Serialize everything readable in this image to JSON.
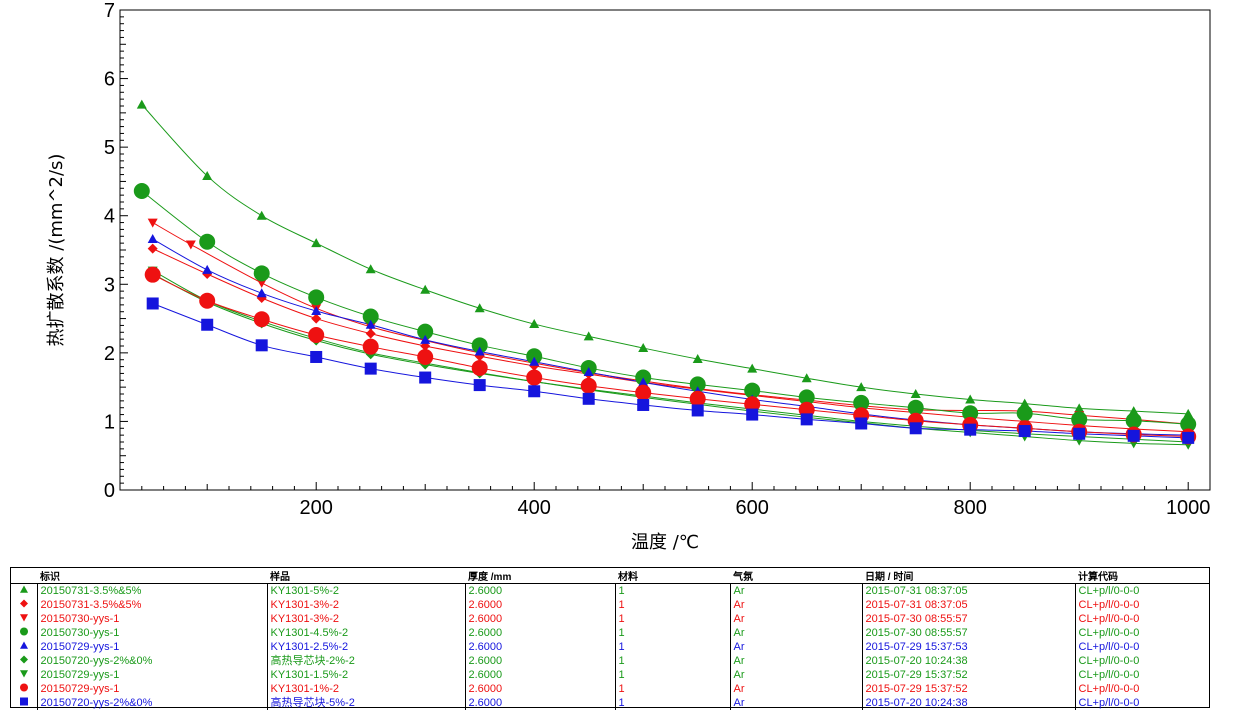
{
  "chart_data": {
    "type": "scatter",
    "xlabel": "温度 /℃",
    "ylabel": "热扩散系数 /(mm^2/s)",
    "xlim": [
      20,
      1020
    ],
    "ylim": [
      0,
      7
    ],
    "xticks": [
      200,
      400,
      600,
      800,
      1000
    ],
    "yticks": [
      0,
      1,
      2,
      3,
      4,
      5,
      6,
      7
    ],
    "grid": false,
    "legend_placement": "bottom table",
    "series": [
      {
        "name": "20150731-3.5%&5%",
        "color": "#1a9a1a",
        "marker": "triangle-up",
        "size": "small",
        "x": [
          40,
          100,
          150,
          200,
          250,
          300,
          350,
          400,
          450,
          500,
          550,
          600,
          650,
          700,
          750,
          800,
          850,
          900,
          950,
          1000
        ],
        "y": [
          5.62,
          4.58,
          4.0,
          3.6,
          3.22,
          2.92,
          2.65,
          2.42,
          2.24,
          2.07,
          1.91,
          1.77,
          1.63,
          1.5,
          1.4,
          1.32,
          1.26,
          1.19,
          1.15,
          1.11
        ]
      },
      {
        "name": "20150731-3.5%&5%",
        "color": "#ee1111",
        "marker": "diamond",
        "size": "small",
        "x": [
          50,
          100,
          150,
          200,
          250,
          300,
          350,
          400,
          450,
          500,
          550,
          600,
          650,
          700,
          750,
          800,
          850,
          900,
          950,
          1000
        ],
        "y": [
          3.52,
          3.15,
          2.8,
          2.5,
          2.28,
          2.1,
          1.95,
          1.81,
          1.69,
          1.57,
          1.47,
          1.38,
          1.29,
          1.2,
          1.13,
          1.06,
          1.0,
          0.94,
          0.89,
          0.85
        ]
      },
      {
        "name": "20150730-yys-1",
        "color": "#ee1111",
        "marker": "triangle-down",
        "size": "small",
        "x": [
          50,
          85,
          150,
          200,
          250,
          300,
          350,
          400,
          450,
          500,
          550,
          600,
          650,
          700,
          750,
          800,
          850,
          900,
          950,
          1000
        ],
        "y": [
          3.9,
          3.58,
          3.02,
          2.65,
          2.38,
          2.18,
          2.0,
          1.85,
          1.71,
          1.59,
          1.48,
          1.39,
          1.31,
          1.23,
          1.17,
          1.16,
          1.15,
          1.09,
          1.03,
          0.96
        ]
      },
      {
        "name": "20150730-yys-1",
        "color": "#1a9a1a",
        "marker": "circle",
        "size": "large",
        "x": [
          40,
          100,
          150,
          200,
          250,
          300,
          350,
          400,
          450,
          500,
          550,
          600,
          650,
          700,
          750,
          800,
          850,
          900,
          950,
          1000
        ],
        "y": [
          4.36,
          3.62,
          3.16,
          2.81,
          2.53,
          2.31,
          2.11,
          1.95,
          1.78,
          1.64,
          1.54,
          1.45,
          1.35,
          1.27,
          1.2,
          1.12,
          1.12,
          1.03,
          1.01,
          0.96
        ]
      },
      {
        "name": "20150729-yys-1",
        "color": "#1515dd",
        "marker": "triangle-up",
        "size": "small",
        "x": [
          50,
          100,
          150,
          200,
          250,
          300,
          350,
          400,
          450,
          500,
          550,
          600,
          650,
          700,
          750,
          800,
          850,
          900,
          950,
          1000
        ],
        "y": [
          3.66,
          3.21,
          2.87,
          2.61,
          2.41,
          2.19,
          2.02,
          1.87,
          1.72,
          1.57,
          1.44,
          1.32,
          1.22,
          1.11,
          1.02,
          0.95,
          0.9,
          0.85,
          0.82,
          0.8
        ]
      },
      {
        "name": "20150720-yys-2%&0%",
        "color": "#1a9a1a",
        "marker": "diamond",
        "size": "small",
        "x": [
          50,
          100,
          150,
          200,
          250,
          300,
          350,
          400,
          450,
          500,
          550,
          600,
          650,
          700,
          750,
          800,
          850,
          900,
          950,
          1000
        ],
        "y": [
          3.15,
          2.74,
          2.43,
          2.18,
          1.98,
          1.83,
          1.7,
          1.58,
          1.47,
          1.37,
          1.27,
          1.18,
          1.09,
          1.0,
          0.93,
          0.87,
          0.82,
          0.78,
          0.74,
          0.7
        ]
      },
      {
        "name": "20150729-yys-1",
        "color": "#1a9a1a",
        "marker": "triangle-down",
        "size": "small",
        "x": [
          50,
          100,
          150,
          200,
          250,
          300,
          350,
          400,
          450,
          500,
          550,
          600,
          650,
          700,
          750,
          800,
          850,
          900,
          950,
          1000
        ],
        "y": [
          3.2,
          2.76,
          2.46,
          2.21,
          2.0,
          1.85,
          1.71,
          1.58,
          1.46,
          1.35,
          1.25,
          1.15,
          1.06,
          0.98,
          0.9,
          0.84,
          0.78,
          0.72,
          0.68,
          0.66
        ]
      },
      {
        "name": "20150729-yys-1",
        "color": "#ee1111",
        "marker": "circle",
        "size": "large",
        "x": [
          50,
          100,
          150,
          200,
          250,
          300,
          350,
          400,
          450,
          500,
          550,
          600,
          650,
          700,
          750,
          800,
          850,
          900,
          950,
          1000
        ],
        "y": [
          3.14,
          2.76,
          2.49,
          2.26,
          2.09,
          1.94,
          1.78,
          1.64,
          1.52,
          1.42,
          1.33,
          1.25,
          1.17,
          1.09,
          1.01,
          0.95,
          0.9,
          0.85,
          0.81,
          0.78
        ]
      },
      {
        "name": "20150720-yys-2%&0%",
        "color": "#1515dd",
        "marker": "square",
        "size": "large",
        "x": [
          50,
          100,
          150,
          200,
          250,
          300,
          350,
          400,
          450,
          500,
          550,
          600,
          650,
          700,
          750,
          800,
          850,
          900,
          950,
          1000
        ],
        "y": [
          2.72,
          2.41,
          2.11,
          1.94,
          1.77,
          1.64,
          1.53,
          1.44,
          1.33,
          1.24,
          1.16,
          1.1,
          1.03,
          0.97,
          0.9,
          0.88,
          0.86,
          0.82,
          0.79,
          0.76
        ]
      }
    ]
  },
  "legend": {
    "headers": [
      "标识",
      "样品",
      "厚度 /mm",
      "材料",
      "气氛",
      "日期 / 时间",
      "计算代码"
    ],
    "rows": [
      {
        "color": "#1a9a1a",
        "marker": "triangle-up",
        "id": "20150731-3.5%&5%",
        "sample": "KY1301-5%-2",
        "thickness": "2.6000",
        "material": "1",
        "atmosphere": "Ar",
        "datetime": "2015-07-31 08:37:05",
        "code": "CL+p/l/0-0-0"
      },
      {
        "color": "#ee1111",
        "marker": "diamond",
        "id": "20150731-3.5%&5%",
        "sample": "KY1301-3%-2",
        "thickness": "2.6000",
        "material": "1",
        "atmosphere": "Ar",
        "datetime": "2015-07-31 08:37:05",
        "code": "CL+p/l/0-0-0"
      },
      {
        "color": "#ee1111",
        "marker": "triangle-down",
        "id": "20150730-yys-1",
        "sample": "KY1301-3%-2",
        "thickness": "2.6000",
        "material": "1",
        "atmosphere": "Ar",
        "datetime": "2015-07-30 08:55:57",
        "code": "CL+p/l/0-0-0"
      },
      {
        "color": "#1a9a1a",
        "marker": "circle",
        "id": "20150730-yys-1",
        "sample": "KY1301-4.5%-2",
        "thickness": "2.6000",
        "material": "1",
        "atmosphere": "Ar",
        "datetime": "2015-07-30 08:55:57",
        "code": "CL+p/l/0-0-0"
      },
      {
        "color": "#1515dd",
        "marker": "triangle-up",
        "id": "20150729-yys-1",
        "sample": "KY1301-2.5%-2",
        "thickness": "2.6000",
        "material": "1",
        "atmosphere": "Ar",
        "datetime": "2015-07-29 15:37:53",
        "code": "CL+p/l/0-0-0"
      },
      {
        "color": "#1a9a1a",
        "marker": "diamond",
        "id": "20150720-yys-2%&0%",
        "sample": "高热导芯块-2%-2",
        "thickness": "2.6000",
        "material": "1",
        "atmosphere": "Ar",
        "datetime": "2015-07-20 10:24:38",
        "code": "CL+p/l/0-0-0"
      },
      {
        "color": "#1a9a1a",
        "marker": "triangle-down",
        "id": "20150729-yys-1",
        "sample": "KY1301-1.5%-2",
        "thickness": "2.6000",
        "material": "1",
        "atmosphere": "Ar",
        "datetime": "2015-07-29 15:37:52",
        "code": "CL+p/l/0-0-0"
      },
      {
        "color": "#ee1111",
        "marker": "circle",
        "id": "20150729-yys-1",
        "sample": "KY1301-1%-2",
        "thickness": "2.6000",
        "material": "1",
        "atmosphere": "Ar",
        "datetime": "2015-07-29 15:37:52",
        "code": "CL+p/l/0-0-0"
      },
      {
        "color": "#1515dd",
        "marker": "square",
        "id": "20150720-yys-2%&0%",
        "sample": "高热导芯块-5%-2",
        "thickness": "2.6000",
        "material": "1",
        "atmosphere": "Ar",
        "datetime": "2015-07-20 10:24:38",
        "code": "CL+p/l/0-0-0"
      }
    ]
  }
}
